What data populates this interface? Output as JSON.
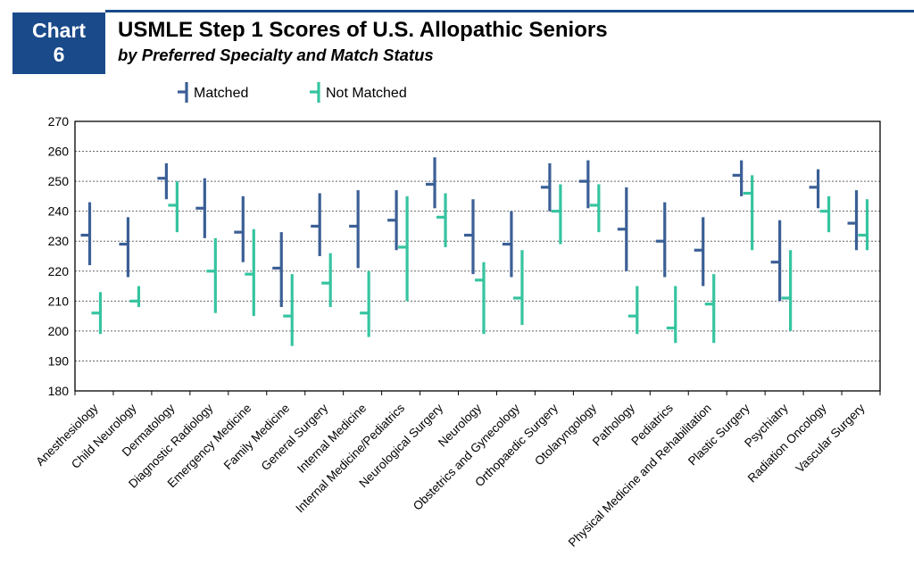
{
  "header": {
    "badge_line1": "Chart",
    "badge_line2": "6",
    "title": "USMLE Step 1 Scores of U.S. Allopathic Seniors",
    "subtitle": "by Preferred Specialty and Match Status"
  },
  "colors": {
    "matched": "#3b5f96",
    "not_matched": "#36c4a0",
    "header_blue": "#1a4a8a",
    "gridline": "#666666"
  },
  "chart_data": {
    "type": "high-low-mean",
    "title": "USMLE Step 1 Scores of U.S. Allopathic Seniors",
    "subtitle": "by Preferred Specialty and Match Status",
    "xlabel": "",
    "ylabel": "",
    "ylim": [
      180,
      270
    ],
    "yticks": [
      180,
      190,
      200,
      210,
      220,
      230,
      240,
      250,
      260,
      270
    ],
    "grid": true,
    "legend_position": "top-left",
    "categories": [
      "Anesthesiology",
      "Child Neurology",
      "Dermatology",
      "Diagnostic Radiology",
      "Emergency Medicine",
      "Family Medicine",
      "General Surgery",
      "Internal Medicine",
      "Internal Medicine/Pediatrics",
      "Neurological Surgery",
      "Neurology",
      "Obstetrics and Gynecology",
      "Orthopaedic Surgery",
      "Otolaryngology",
      "Pathology",
      "Pediatrics",
      "Physical Medicine and Rehabilitation",
      "Plastic Surgery",
      "Psychiatry",
      "Radiation Oncology",
      "Vascular Surgery"
    ],
    "series": [
      {
        "name": "Matched",
        "color": "#3b5f96",
        "high": [
          243,
          238,
          256,
          251,
          245,
          233,
          246,
          247,
          247,
          258,
          244,
          240,
          256,
          257,
          248,
          243,
          238,
          257,
          237,
          254,
          247
        ],
        "low": [
          222,
          218,
          244,
          231,
          223,
          208,
          225,
          221,
          227,
          241,
          219,
          218,
          240,
          241,
          220,
          218,
          215,
          245,
          210,
          241,
          227
        ],
        "mean": [
          232,
          229,
          251,
          241,
          233,
          221,
          235,
          235,
          237,
          249,
          232,
          229,
          248,
          250,
          234,
          230,
          227,
          252,
          223,
          248,
          236
        ]
      },
      {
        "name": "Not Matched",
        "color": "#36c4a0",
        "high": [
          213,
          215,
          250,
          231,
          234,
          219,
          226,
          220,
          245,
          246,
          223,
          227,
          249,
          249,
          215,
          215,
          219,
          252,
          227,
          245,
          244
        ],
        "low": [
          199,
          208,
          233,
          206,
          205,
          195,
          208,
          198,
          210,
          228,
          199,
          202,
          229,
          233,
          199,
          196,
          196,
          227,
          200,
          233,
          227
        ],
        "mean": [
          206,
          210,
          242,
          220,
          219,
          205,
          216,
          206,
          228,
          238,
          217,
          211,
          240,
          242,
          205,
          201,
          209,
          246,
          211,
          240,
          232
        ]
      }
    ]
  }
}
